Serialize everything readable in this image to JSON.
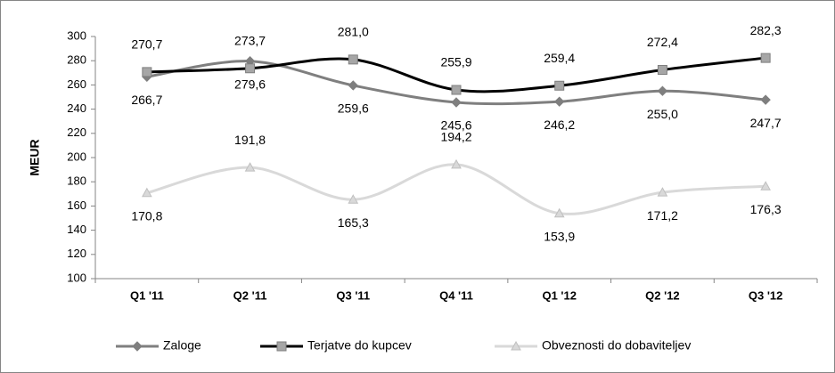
{
  "chart_data": {
    "type": "line",
    "y_label": "MEUR",
    "categories": [
      "Q1 '11",
      "Q2 '11",
      "Q3 '11",
      "Q4 '11",
      "Q1 '12",
      "Q2 '12",
      "Q3 '12"
    ],
    "series": [
      {
        "name": "Zaloge",
        "color": "#7f7f7f",
        "marker": "diamond",
        "values": [
          266.7,
          279.6,
          259.6,
          245.6,
          246.2,
          255.0,
          247.7
        ],
        "value_labels": [
          "266,7",
          "279,6",
          "259,6",
          "245,6",
          "246,2",
          "255,0",
          "247,7"
        ]
      },
      {
        "name": "Terjatve do kupcev",
        "color": "#000000",
        "marker": "square",
        "values": [
          270.7,
          273.7,
          281.0,
          255.9,
          259.4,
          272.4,
          282.3
        ],
        "value_labels": [
          "270,7",
          "273,7",
          "281,0",
          "255,9",
          "259,4",
          "272,4",
          "282,3"
        ]
      },
      {
        "name": "Obveznosti do dobaviteljev",
        "color": "#d9d9d9",
        "marker": "triangle",
        "values": [
          170.8,
          191.8,
          165.3,
          194.2,
          153.9,
          171.2,
          176.3
        ],
        "value_labels": [
          "170,8",
          "191,8",
          "165,3",
          "194,2",
          "153,9",
          "171,2",
          "176,3"
        ]
      }
    ],
    "ylim": [
      100,
      300
    ],
    "yticks": [
      100,
      120,
      140,
      160,
      180,
      200,
      220,
      240,
      260,
      280,
      300
    ],
    "legend": "bottom"
  }
}
